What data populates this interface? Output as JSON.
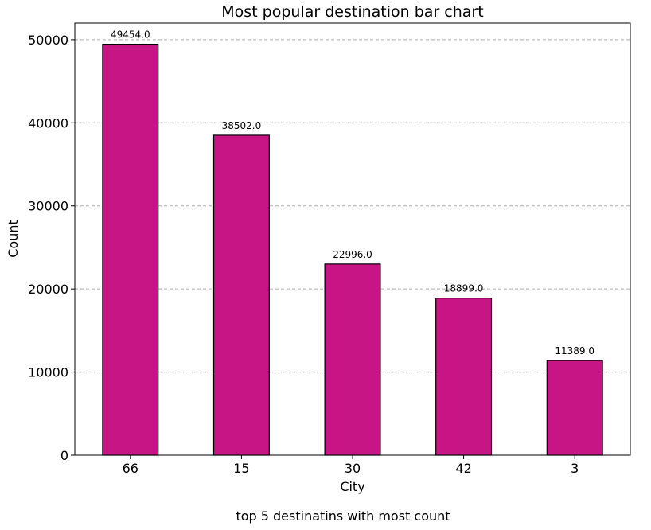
{
  "chart_data": {
    "type": "bar",
    "title": "Most popular destination bar chart",
    "xlabel": "City",
    "ylabel": "Count",
    "caption": "top 5 destinatins with most count",
    "categories": [
      "66",
      "15",
      "30",
      "42",
      "3"
    ],
    "values": [
      49454.0,
      38502.0,
      22996.0,
      18899.0,
      11389.0
    ],
    "data_labels": [
      "49454.0",
      "38502.0",
      "22996.0",
      "18899.0",
      "11389.0"
    ],
    "ylim": [
      0,
      52000
    ],
    "yticks": [
      0,
      10000,
      20000,
      30000,
      40000,
      50000
    ],
    "ytick_labels": [
      "0",
      "10000",
      "20000",
      "30000",
      "40000",
      "50000"
    ],
    "grid": "y-dashed",
    "bar_color": "#C71585"
  }
}
